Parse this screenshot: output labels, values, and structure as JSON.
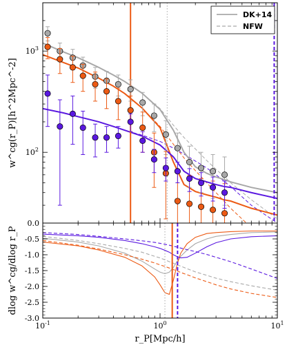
{
  "chart_data": [
    {
      "type": "scatter",
      "xscale": "log",
      "yscale": "log",
      "xlim": [
        0.1,
        10
      ],
      "ylim": [
        20,
        3000
      ],
      "ylabel": "w^cg(r_P)[h^2Mpc^-2]",
      "ytick_labels": [
        "10^2",
        "10^3"
      ],
      "legend": {
        "placement": "top-right",
        "entries": [
          {
            "label": "DK+14",
            "style": "solid"
          },
          {
            "label": "NFW",
            "style": "dashed"
          }
        ]
      },
      "colors": {
        "gray": "#a8a8a8",
        "orange": "#ec5a14",
        "purple": "#5a18e0"
      },
      "x_points": [
        0.11,
        0.14,
        0.18,
        0.22,
        0.28,
        0.35,
        0.44,
        0.56,
        0.71,
        0.89,
        1.12,
        1.41,
        1.78,
        2.24,
        2.82,
        3.55
      ],
      "series": [
        {
          "color_key": "gray",
          "values": [
            1500,
            1000,
            860,
            720,
            560,
            510,
            470,
            420,
            310,
            230,
            150,
            110,
            80,
            70,
            65,
            60
          ],
          "err_up": [
            240,
            200,
            180,
            150,
            130,
            120,
            110,
            100,
            80,
            70,
            55,
            45,
            35,
            30,
            30,
            30
          ]
        },
        {
          "color_key": "orange",
          "values": [
            1100,
            830,
            690,
            570,
            470,
            400,
            320,
            260,
            175,
            100,
            62,
            33,
            31,
            29,
            27,
            25
          ],
          "err_up": [
            260,
            230,
            200,
            170,
            150,
            130,
            110,
            100,
            75,
            55,
            40,
            32,
            28,
            26,
            25,
            24
          ]
        },
        {
          "color_key": "purple",
          "values": [
            380,
            180,
            240,
            175,
            140,
            140,
            145,
            200,
            130,
            85,
            70,
            65,
            55,
            50,
            45,
            40
          ],
          "err_up": [
            200,
            150,
            120,
            80,
            50,
            40,
            35,
            40,
            30,
            22,
            18,
            15,
            14,
            13,
            12,
            12
          ]
        }
      ],
      "model_curves": {
        "x": [
          0.1,
          0.15,
          0.2,
          0.3,
          0.4,
          0.5,
          0.7,
          1.0,
          1.3,
          1.6,
          2.0,
          2.5,
          3.0,
          3.5,
          4.0,
          6.0,
          10.0
        ],
        "dk14": {
          "gray": [
            1200,
            980,
            860,
            690,
            580,
            500,
            385,
            265,
            165,
            100,
            72,
            62,
            57,
            54,
            51,
            45,
            40
          ],
          "orange": [
            920,
            770,
            680,
            540,
            450,
            380,
            275,
            175,
            80,
            48,
            41,
            38,
            36,
            34,
            33,
            28,
            24
          ],
          "purple": [
            270,
            245,
            225,
            200,
            180,
            165,
            145,
            118,
            90,
            65,
            55,
            51,
            48,
            46,
            45,
            40,
            35
          ]
        },
        "nfw": {
          "gray": [
            1200,
            980,
            860,
            690,
            580,
            500,
            385,
            270,
            185,
            140,
            108,
            83,
            68,
            58,
            50,
            34,
            22
          ],
          "orange": [
            920,
            770,
            680,
            540,
            450,
            380,
            275,
            180,
            120,
            88,
            66,
            50,
            40,
            33,
            28,
            18,
            11
          ],
          "purple": [
            270,
            245,
            225,
            200,
            180,
            165,
            148,
            128,
            110,
            96,
            82,
            70,
            60,
            52,
            46,
            30,
            20
          ]
        }
      },
      "vertical_lines": [
        {
          "x": 0.56,
          "color_key": "orange",
          "style": "solid"
        },
        {
          "x": 1.15,
          "color_key": "gray",
          "style": "dotted"
        },
        {
          "x": 9.4,
          "color_key": "purple",
          "style": "dashed"
        }
      ]
    },
    {
      "type": "line",
      "xscale": "log",
      "xlim": [
        0.1,
        10
      ],
      "ylim": [
        -3.0,
        0.0
      ],
      "xlabel": "r_P[Mpc/h]",
      "ylabel": "dlog w^cg/dlog r_P",
      "xtick_labels": [
        "10^-1",
        "10^0",
        "10^1"
      ],
      "ytick_labels": [
        "0.0",
        "-0.5",
        "-1.0",
        "-1.5",
        "-2.0",
        "-2.5",
        "-3.0"
      ],
      "x": [
        0.1,
        0.2,
        0.3,
        0.5,
        0.7,
        0.9,
        1.0,
        1.1,
        1.2,
        1.3,
        1.4,
        1.5,
        1.7,
        2.0,
        2.5,
        3.0,
        4.0,
        6.0,
        10.0
      ],
      "series": [
        {
          "color_key": "gray",
          "style": "solid",
          "values": [
            -0.48,
            -0.6,
            -0.72,
            -0.95,
            -1.2,
            -1.45,
            -1.55,
            -1.6,
            -1.55,
            -1.4,
            -1.2,
            -1.05,
            -0.85,
            -0.65,
            -0.5,
            -0.42,
            -0.36,
            -0.3,
            -0.28
          ]
        },
        {
          "color_key": "orange",
          "style": "solid",
          "values": [
            -0.6,
            -0.72,
            -0.85,
            -1.08,
            -1.35,
            -1.7,
            -1.95,
            -2.2,
            -2.25,
            -1.8,
            -1.3,
            -0.95,
            -0.65,
            -0.45,
            -0.33,
            -0.3,
            -0.27,
            -0.25,
            -0.25
          ]
        },
        {
          "color_key": "purple",
          "style": "solid",
          "values": [
            -0.35,
            -0.4,
            -0.45,
            -0.55,
            -0.65,
            -0.75,
            -0.8,
            -0.86,
            -0.92,
            -1.0,
            -1.06,
            -1.1,
            -1.08,
            -0.95,
            -0.75,
            -0.62,
            -0.5,
            -0.43,
            -0.4
          ]
        },
        {
          "color_key": "gray",
          "style": "dashed",
          "values": [
            -0.42,
            -0.55,
            -0.65,
            -0.8,
            -0.92,
            -1.05,
            -1.1,
            -1.16,
            -1.22,
            -1.27,
            -1.32,
            -1.36,
            -1.44,
            -1.54,
            -1.65,
            -1.74,
            -1.85,
            -1.98,
            -2.12
          ]
        },
        {
          "color_key": "orange",
          "style": "dashed",
          "values": [
            -0.55,
            -0.7,
            -0.82,
            -1.0,
            -1.14,
            -1.26,
            -1.32,
            -1.37,
            -1.42,
            -1.47,
            -1.51,
            -1.56,
            -1.63,
            -1.73,
            -1.85,
            -1.95,
            -2.08,
            -2.22,
            -2.35
          ]
        },
        {
          "color_key": "purple",
          "style": "dashed",
          "values": [
            -0.3,
            -0.36,
            -0.42,
            -0.5,
            -0.56,
            -0.61,
            -0.64,
            -0.67,
            -0.7,
            -0.73,
            -0.76,
            -0.79,
            -0.84,
            -0.9,
            -0.99,
            -1.08,
            -1.22,
            -1.45,
            -1.75
          ]
        }
      ],
      "vertical_lines": [
        {
          "x": 1.1,
          "color_key": "gray",
          "style": "dotted"
        },
        {
          "x": 1.27,
          "color_key": "orange",
          "style": "solid"
        },
        {
          "x": 1.41,
          "color_key": "purple",
          "style": "dashed"
        }
      ]
    }
  ]
}
